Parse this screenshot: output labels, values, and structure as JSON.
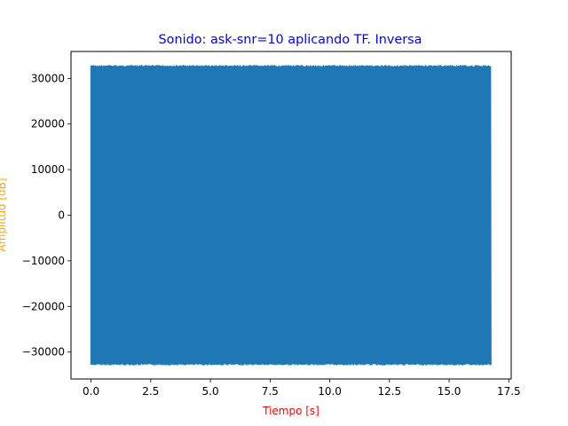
{
  "chart_data": {
    "type": "line",
    "title": "Sonido: ask-snr=10 aplicando TF. Inversa",
    "xlabel": "Tiempo [s]",
    "ylabel": "Amplitud [dB]",
    "xlim": [
      -0.84,
      17.6
    ],
    "ylim": [
      -35900,
      35900
    ],
    "xticks": [
      0.0,
      2.5,
      5.0,
      7.5,
      10.0,
      12.5,
      15.0,
      17.5
    ],
    "xtick_labels": [
      "0.0",
      "2.5",
      "5.0",
      "7.5",
      "10.0",
      "12.5",
      "15.0",
      "17.5"
    ],
    "yticks": [
      -30000,
      -20000,
      -10000,
      0,
      10000,
      20000,
      30000
    ],
    "ytick_labels": [
      "−30000",
      "−20000",
      "−10000",
      "0",
      "10000",
      "20000",
      "30000"
    ],
    "grid": false,
    "series": [
      {
        "color": "#1f77b4",
        "x_start": 0.0,
        "x_end": 16.75,
        "amplitude_max": 32767,
        "amplitude_min": -32768
      }
    ]
  },
  "colors": {
    "title": "#0000ff",
    "xlabel": "#ff0000",
    "ylabel": "#ffa500",
    "signal": "#1f77b4"
  }
}
